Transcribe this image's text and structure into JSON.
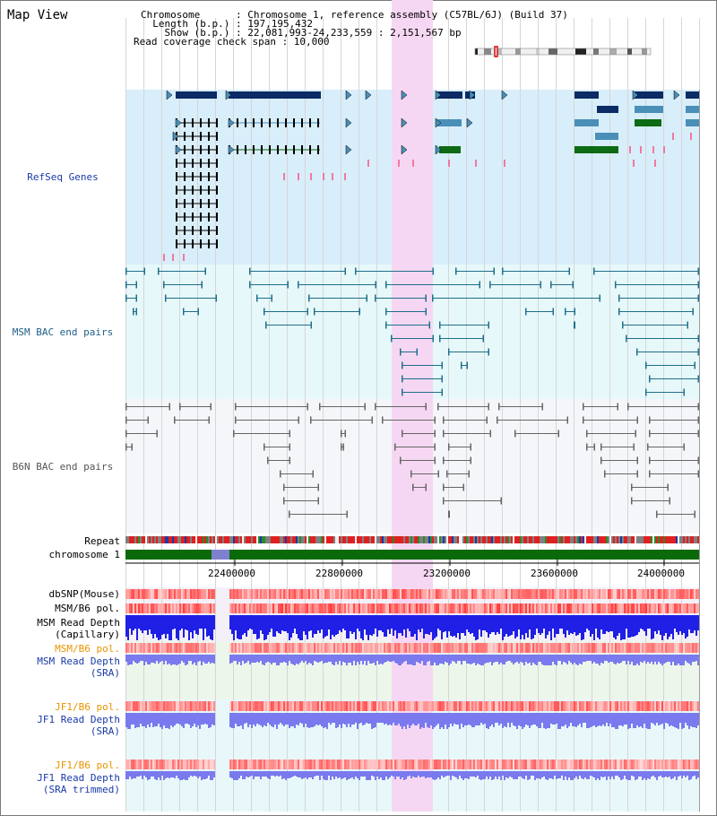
{
  "window": {
    "title": "Map View"
  },
  "header": {
    "lines": [
      "Chromosome      : Chromosome 1, reference assembly (C57BL/6J) (Build 37)",
      "  Length (b.p.) : 197,195,432",
      "    Show (b.p.) : 22,081,993-24,233,559 : 2,151,567 bp",
      "Read coverage check span : 10,000"
    ]
  },
  "tracks": {
    "refseq": "RefSeq Genes",
    "msm_bac": "MSM BAC end pairs",
    "b6n_bac": "B6N BAC end pairs",
    "repeat": "Repeat",
    "chromosome": "chromosome 1",
    "dbsnp": "dbSNP(Mouse)",
    "msm_b6_pol_1": "MSM/B6 pol.",
    "msm_read_depth_cap_1": "MSM Read Depth",
    "msm_read_depth_cap_2": "(Capillary)",
    "msm_b6_pol_2": "MSM/B6 pol.",
    "msm_read_depth_sra_1": "MSM Read Depth",
    "msm_read_depth_sra_2": "(SRA)",
    "jf1_b6_pol_1": "JF1/B6 pol.",
    "jf1_read_depth_sra_1": "JF1 Read Depth",
    "jf1_read_depth_sra_2": "(SRA)",
    "jf1_b6_pol_2": "JF1/B6 pol.",
    "jf1_read_depth_trim_1": "JF1 Read Depth",
    "jf1_read_depth_trim_2": "(SRA trimmed)"
  },
  "axis": {
    "ticks": [
      "22400000",
      "22800000",
      "23200000",
      "23600000",
      "24000000"
    ]
  },
  "colors": {
    "refseq_bg": "#d8eefa",
    "msm_bg": "#e6f8fa",
    "b6n_bg": "#f4f6fa",
    "highlight": "#f6d7f3",
    "gene_dark": "#0b2a66",
    "gene_mid": "#4a8fb8",
    "gene_green": "#0c6b14",
    "msm_line": "#1f6f8a",
    "b6n_line": "#666666",
    "chrom_green": "#0a6a0a",
    "label_blue": "#1a3aa8",
    "label_orange": "#e89400",
    "depth_blue": "#1f1fe6",
    "depth_light": "#7a7aee"
  }
}
